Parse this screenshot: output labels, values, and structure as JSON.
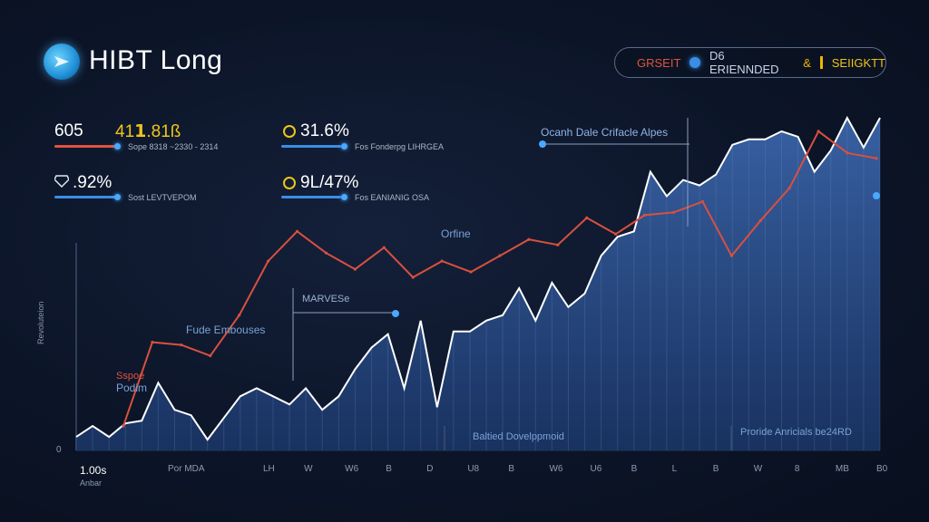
{
  "header": {
    "title": "HIBT Long",
    "pill": {
      "red_label": "GRSEIT",
      "blue_label": "D6 ERIENNDED",
      "amp": "&",
      "yellow_label": "SEIIGKTT"
    }
  },
  "stats": [
    {
      "value": "605",
      "value2": "41𝟭.81ß",
      "sub": "Sope 8318 ~2330 - 2314",
      "bar_color": "#e0533f"
    },
    {
      "value": "31.6%",
      "sub": "Fos Fonderpg LIHRGEA",
      "bar_color": "#3a8ee6",
      "icon": "coin-icon"
    },
    {
      "value": ".92%",
      "sub": "Sost LEVTVEPOM",
      "bar_color": "#3a8ee6",
      "icon": "diamond-icon"
    },
    {
      "value": "9L/47%",
      "sub": "Fos EANIANIG OSA",
      "bar_color": "#3a8ee6",
      "icon": "coin-icon"
    }
  ],
  "colors": {
    "area_fill": "#2a4f8f",
    "area_stroke": "#ffffff",
    "trend_line": "#d9503f",
    "accent": "#3a8ee6"
  },
  "chart_data": {
    "type": "area",
    "title": "",
    "ylabel": "Revoluteion",
    "y_zero_label": "0",
    "x_start_label": "1.00s",
    "x_start_sub": "Anbar",
    "x_tick_labels": [
      "Por MDA",
      "LH",
      "W",
      "W6",
      "B",
      "D",
      "U8",
      "B",
      "W6",
      "U6",
      "B",
      "L",
      "B",
      "W",
      "8",
      "MB",
      "B0"
    ],
    "series": [
      {
        "name": "",
        "values": [
          5,
          9,
          5,
          10,
          11,
          25,
          15,
          13,
          4,
          12,
          20,
          23,
          20,
          17,
          23,
          15,
          20,
          30,
          38,
          43,
          23,
          48,
          16,
          44,
          44,
          48,
          50,
          60,
          48,
          62,
          53,
          58,
          72,
          79,
          81,
          103,
          94,
          100,
          98,
          102,
          113,
          115,
          115,
          118,
          116,
          103,
          111,
          123,
          112,
          123
        ]
      },
      {
        "name": "",
        "values": [
          9,
          40,
          39,
          35,
          50,
          70,
          81,
          73,
          67,
          75,
          64,
          70,
          66,
          72,
          78,
          76,
          86,
          80,
          87,
          88,
          92,
          72,
          85,
          97,
          118,
          110,
          108
        ]
      }
    ],
    "annotations": [
      {
        "text": "Ocanh Dale Crifacle Alpes"
      },
      {
        "text": "Orfine"
      },
      {
        "text": "MARVESe"
      },
      {
        "text": "Fude Embouses"
      },
      {
        "text": "Sspoe"
      },
      {
        "text": "Podim"
      },
      {
        "text": "Baltied Dovelppmoid"
      },
      {
        "text": "Proride Anricials be24RD"
      }
    ]
  }
}
